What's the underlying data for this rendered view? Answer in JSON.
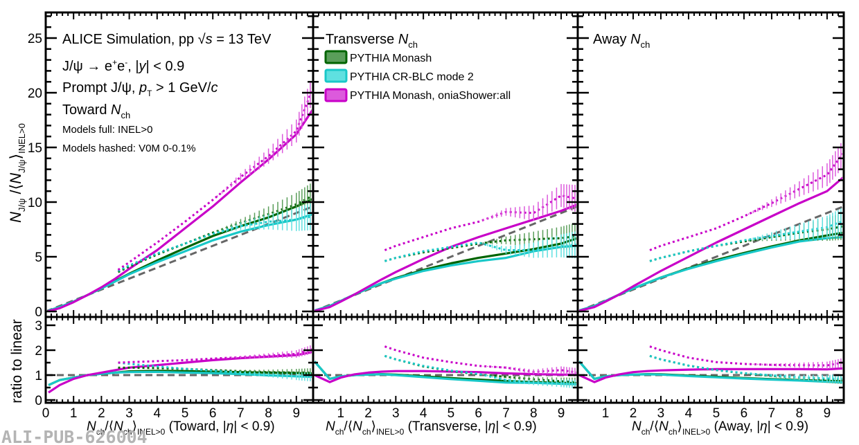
{
  "colors": {
    "monash": "#006400",
    "monash_fill": "#5a9e5a",
    "crblc": "#19c8c8",
    "crblc_fill": "#5fe0e0",
    "onia": "#c800c8",
    "onia_fill": "#dc5adc",
    "linear": "#666666"
  },
  "annotations": {
    "line1_pre": "ALICE Simulation, pp ",
    "line1_sqrt": "√",
    "line1_s": "s",
    "line1_post": " = 13 TeV",
    "line2_a": "J/ψ → e",
    "line2_sup1": "+",
    "line2_b": "e",
    "line2_sup2": "-",
    "line2_c": ", |",
    "line2_y": "y",
    "line2_d": "| < 0.9",
    "line3_a": "Prompt J/ψ, ",
    "line3_p": "p",
    "line3_sub": "T",
    "line3_b": " > 1 GeV/",
    "line3_c": "c",
    "line4_a": "Toward ",
    "line4_N": "N",
    "line4_sub": "ch",
    "line5": "Models full: INEL>0",
    "line6": "Models hashed: V0M 0-0.1%",
    "transverse_a": "Transverse ",
    "transverse_N": "N",
    "transverse_sub": "ch",
    "away_a": "Away ",
    "away_N": "N",
    "away_sub": "ch"
  },
  "watermark": "ALI-PUB-626004",
  "chart_data": [
    {
      "type": "line",
      "title": "Toward Nch",
      "panel": "toward",
      "xlabel": "Nch/⟨Nch⟩INEL>0 (Toward, |η| < 0.9)",
      "ylabel": "NJ/ψ/⟨NJ/ψ⟩INEL>0",
      "ylabel_ratio": "ratio to linear",
      "xlim": [
        0,
        9.6
      ],
      "ylim": [
        0,
        27
      ],
      "ylim_ratio": [
        0,
        3.4
      ],
      "x_ticks": [
        "0",
        "1",
        "2",
        "3",
        "4",
        "5",
        "6",
        "7",
        "8",
        "9"
      ],
      "y_ticks": [
        "0",
        "5",
        "10",
        "15",
        "20",
        "25"
      ],
      "y_ticks_ratio": [
        "0",
        "1",
        "2",
        "3"
      ],
      "legend": [
        "PYTHIA Monash",
        "PYTHIA CR-BLC mode 2",
        "PYTHIA Monash, oniaShower:all"
      ],
      "series": [
        {
          "name": "Linear reference",
          "style": "dashed",
          "color": "linear",
          "x": [
            0,
            9.6
          ],
          "y": [
            0,
            9.6
          ],
          "ratio": [
            1,
            1
          ]
        },
        {
          "name": "PYTHIA Monash (INEL>0)",
          "style": "solid",
          "color": "monash",
          "x": [
            0.1,
            0.5,
            1,
            1.5,
            2,
            2.5,
            3,
            4,
            5,
            6,
            7,
            8,
            9,
            9.6
          ],
          "y": [
            0.07,
            0.4,
            0.9,
            1.5,
            2.1,
            2.8,
            3.45,
            4.65,
            5.8,
            6.9,
            7.8,
            8.6,
            9.6,
            10.3
          ],
          "ratio": [
            0.6,
            0.8,
            0.9,
            1.0,
            1.05,
            1.1,
            1.15,
            1.17,
            1.16,
            1.14,
            1.12,
            1.1,
            1.08,
            1.07
          ]
        },
        {
          "name": "PYTHIA CR-BLC mode 2 (INEL>0)",
          "style": "solid",
          "color": "crblc",
          "x": [
            0.1,
            0.5,
            1,
            1.5,
            2,
            2.5,
            3,
            4,
            5,
            6,
            7,
            8,
            9,
            9.6
          ],
          "y": [
            0.07,
            0.4,
            0.9,
            1.5,
            2.1,
            2.75,
            3.4,
            4.5,
            5.5,
            6.5,
            7.3,
            7.9,
            8.4,
            8.9
          ],
          "ratio": [
            0.6,
            0.8,
            0.9,
            1.0,
            1.05,
            1.1,
            1.12,
            1.13,
            1.1,
            1.08,
            1.04,
            0.99,
            0.95,
            0.93
          ]
        },
        {
          "name": "PYTHIA Monash, oniaShower:all (INEL>0)",
          "style": "solid",
          "color": "onia",
          "x": [
            0.1,
            0.5,
            1,
            1.5,
            2,
            2.5,
            3,
            4,
            5,
            6,
            7,
            8,
            9,
            9.6
          ],
          "y": [
            0.03,
            0.3,
            0.85,
            1.5,
            2.2,
            3.0,
            3.9,
            5.6,
            7.6,
            9.6,
            11.8,
            13.9,
            16.2,
            18.5
          ],
          "ratio": [
            0.3,
            0.6,
            0.85,
            1.0,
            1.1,
            1.2,
            1.3,
            1.4,
            1.5,
            1.6,
            1.68,
            1.74,
            1.8,
            1.93
          ]
        },
        {
          "name": "PYTHIA Monash (V0M 0-0.1%)",
          "style": "hashed",
          "color": "monash",
          "x": [
            2.6,
            3,
            4,
            5,
            6,
            7,
            8,
            9,
            9.6
          ],
          "y": [
            3.6,
            4.1,
            5.2,
            6.2,
            7.2,
            8.1,
            8.9,
            9.8,
            10.6
          ],
          "ratio": [
            1.3,
            1.3,
            1.28,
            1.25,
            1.2,
            1.16,
            1.12,
            1.1,
            1.1
          ]
        },
        {
          "name": "PYTHIA CR-BLC mode 2 (V0M 0-0.1%)",
          "style": "hashed",
          "color": "crblc",
          "x": [
            2.6,
            3,
            4,
            5,
            6,
            7,
            8,
            9,
            9.6
          ],
          "y": [
            3.7,
            4.2,
            5.3,
            6.2,
            7.1,
            7.8,
            8.2,
            8.4,
            8.7
          ],
          "ratio": [
            1.5,
            1.45,
            1.35,
            1.25,
            1.18,
            1.1,
            1.02,
            0.95,
            0.92
          ]
        },
        {
          "name": "PYTHIA Monash, oniaShower:all (V0M 0-0.1%)",
          "style": "hashed",
          "color": "onia",
          "x": [
            2.6,
            3,
            4,
            5,
            6,
            7,
            8,
            9,
            9.6
          ],
          "y": [
            3.8,
            4.5,
            6.3,
            8.2,
            10.2,
            12.3,
            14.2,
            16.5,
            20.5
          ],
          "ratio": [
            1.5,
            1.52,
            1.56,
            1.6,
            1.66,
            1.72,
            1.78,
            1.85,
            2.05
          ]
        }
      ]
    },
    {
      "type": "line",
      "title": "Transverse Nch",
      "panel": "transverse",
      "xlabel": "Nch/⟨Nch⟩INEL>0 (Transverse, |η| < 0.9)",
      "xlim": [
        0,
        9.6
      ],
      "ylim": [
        0,
        27
      ],
      "ylim_ratio": [
        0,
        3.4
      ],
      "x_ticks": [
        "1",
        "2",
        "3",
        "4",
        "5",
        "6",
        "7",
        "8",
        "9"
      ],
      "series": [
        {
          "name": "Linear reference",
          "style": "dashed",
          "color": "linear",
          "x": [
            0,
            9.6
          ],
          "y": [
            0,
            9.6
          ],
          "ratio": [
            1,
            1
          ]
        },
        {
          "name": "PYTHIA Monash (INEL>0)",
          "style": "solid",
          "color": "monash",
          "x": [
            0.05,
            0.6,
            1,
            1.5,
            2,
            2.5,
            3,
            4,
            5,
            6,
            7,
            8,
            9,
            9.6
          ],
          "y": [
            0.08,
            0.5,
            0.95,
            1.55,
            2.1,
            2.6,
            3.05,
            3.8,
            4.4,
            4.9,
            5.3,
            5.7,
            6.2,
            6.7
          ],
          "ratio": [
            1.55,
            0.85,
            0.95,
            1.0,
            1.02,
            1.04,
            1.02,
            0.95,
            0.88,
            0.82,
            0.76,
            0.72,
            0.69,
            0.68
          ]
        },
        {
          "name": "PYTHIA CR-BLC mode 2 (INEL>0)",
          "style": "solid",
          "color": "crblc",
          "x": [
            0.05,
            0.6,
            1,
            1.5,
            2,
            2.5,
            3,
            4,
            5,
            6,
            7,
            8,
            9,
            9.6
          ],
          "y": [
            0.08,
            0.5,
            0.95,
            1.55,
            2.1,
            2.6,
            3.0,
            3.7,
            4.2,
            4.6,
            4.9,
            5.5,
            5.9,
            6.0
          ],
          "ratio": [
            1.55,
            0.85,
            0.95,
            1.0,
            1.02,
            1.03,
            1.0,
            0.92,
            0.84,
            0.77,
            0.7,
            0.69,
            0.65,
            0.63
          ]
        },
        {
          "name": "PYTHIA Monash, oniaShower:all (INEL>0)",
          "style": "solid",
          "color": "onia",
          "x": [
            0.05,
            0.6,
            1,
            1.5,
            2,
            2.5,
            3,
            4,
            5,
            6,
            7,
            8,
            9,
            9.6
          ],
          "y": [
            0.05,
            0.4,
            0.9,
            1.55,
            2.25,
            2.95,
            3.6,
            4.8,
            5.9,
            6.8,
            7.6,
            8.4,
            9.2,
            9.8
          ],
          "ratio": [
            1.0,
            0.72,
            0.9,
            1.03,
            1.1,
            1.14,
            1.16,
            1.16,
            1.14,
            1.12,
            1.07,
            1.04,
            1.02,
            1.02
          ]
        },
        {
          "name": "PYTHIA Monash (V0M 0-0.1%)",
          "style": "hashed",
          "color": "monash",
          "x": [
            2.6,
            3,
            4,
            5,
            6,
            7,
            8,
            9,
            9.6
          ],
          "y": [
            4.6,
            4.9,
            5.4,
            5.8,
            6.2,
            6.5,
            6.6,
            6.7,
            6.9
          ],
          "ratio": [
            1.77,
            1.63,
            1.35,
            1.16,
            1.03,
            0.93,
            0.83,
            0.75,
            0.72
          ]
        },
        {
          "name": "PYTHIA CR-BLC mode 2 (V0M 0-0.1%)",
          "style": "hashed",
          "color": "crblc",
          "x": [
            2.6,
            3,
            4,
            5,
            6,
            7,
            8,
            9,
            9.6
          ],
          "y": [
            4.6,
            4.9,
            5.5,
            5.9,
            6.3,
            5.6,
            5.6,
            6.0,
            6.1
          ],
          "ratio": [
            1.77,
            1.63,
            1.37,
            1.18,
            1.05,
            0.8,
            0.7,
            0.67,
            0.64
          ]
        },
        {
          "name": "PYTHIA Monash, oniaShower:all (V0M 0-0.1%)",
          "style": "hashed",
          "color": "onia",
          "x": [
            2.6,
            3,
            4,
            5,
            6,
            7,
            8,
            9,
            9.6
          ],
          "y": [
            5.6,
            6.0,
            6.8,
            7.6,
            8.2,
            9.1,
            9.0,
            10.6,
            10.3
          ],
          "ratio": [
            2.15,
            2.0,
            1.7,
            1.52,
            1.37,
            1.3,
            1.13,
            1.2,
            1.1
          ]
        }
      ]
    },
    {
      "type": "line",
      "title": "Away Nch",
      "panel": "away",
      "xlabel": "Nch/⟨Nch⟩INEL>0 (Away, |η| < 0.9)",
      "xlim": [
        0,
        9.6
      ],
      "ylim": [
        0,
        27
      ],
      "ylim_ratio": [
        0,
        3.4
      ],
      "x_ticks": [
        "1",
        "2",
        "3",
        "4",
        "5",
        "6",
        "7",
        "8",
        "9"
      ],
      "series": [
        {
          "name": "Linear reference",
          "style": "dashed",
          "color": "linear",
          "x": [
            0,
            9.6
          ],
          "y": [
            0,
            9.6
          ],
          "ratio": [
            1,
            1
          ]
        },
        {
          "name": "PYTHIA Monash (INEL>0)",
          "style": "solid",
          "color": "monash",
          "x": [
            0.05,
            0.6,
            1,
            1.5,
            2,
            2.5,
            3,
            4,
            5,
            6,
            7,
            8,
            9,
            9.6
          ],
          "y": [
            0.08,
            0.5,
            0.95,
            1.55,
            2.1,
            2.6,
            3.1,
            3.95,
            4.7,
            5.35,
            5.95,
            6.5,
            6.95,
            7.2
          ],
          "ratio": [
            1.55,
            0.85,
            0.95,
            1.0,
            1.02,
            1.04,
            1.03,
            0.98,
            0.93,
            0.88,
            0.84,
            0.8,
            0.77,
            0.75
          ]
        },
        {
          "name": "PYTHIA CR-BLC mode 2 (INEL>0)",
          "style": "solid",
          "color": "crblc",
          "x": [
            0.05,
            0.6,
            1,
            1.5,
            2,
            2.5,
            3,
            4,
            5,
            6,
            7,
            8,
            9,
            9.6
          ],
          "y": [
            0.08,
            0.5,
            0.95,
            1.55,
            2.1,
            2.6,
            3.1,
            3.9,
            4.6,
            5.25,
            5.85,
            6.4,
            6.7,
            6.8
          ],
          "ratio": [
            1.55,
            0.85,
            0.95,
            1.0,
            1.02,
            1.03,
            1.02,
            0.96,
            0.91,
            0.86,
            0.82,
            0.78,
            0.73,
            0.7
          ]
        },
        {
          "name": "PYTHIA Monash, oniaShower:all (INEL>0)",
          "style": "solid",
          "color": "onia",
          "x": [
            0.05,
            0.6,
            1,
            1.5,
            2,
            2.5,
            3,
            4,
            5,
            6,
            7,
            8,
            9,
            9.6
          ],
          "y": [
            0.05,
            0.4,
            0.9,
            1.55,
            2.3,
            3.0,
            3.7,
            5.0,
            6.3,
            7.5,
            8.7,
            9.9,
            11.0,
            12.3
          ],
          "ratio": [
            1.0,
            0.72,
            0.9,
            1.03,
            1.12,
            1.16,
            1.19,
            1.22,
            1.24,
            1.24,
            1.24,
            1.24,
            1.23,
            1.27
          ]
        },
        {
          "name": "PYTHIA Monash (V0M 0-0.1%)",
          "style": "hashed",
          "color": "monash",
          "x": [
            2.6,
            3,
            4,
            5,
            6,
            7,
            8,
            9,
            9.6
          ],
          "y": [
            4.6,
            4.9,
            5.5,
            6.0,
            6.4,
            6.8,
            7.2,
            7.5,
            7.8
          ],
          "ratio": [
            1.77,
            1.63,
            1.38,
            1.2,
            1.07,
            0.97,
            0.9,
            0.84,
            0.82
          ]
        },
        {
          "name": "PYTHIA CR-BLC mode 2 (V0M 0-0.1%)",
          "style": "hashed",
          "color": "crblc",
          "x": [
            2.6,
            3,
            4,
            5,
            6,
            7,
            8,
            9,
            9.6
          ],
          "y": [
            4.6,
            4.9,
            5.5,
            6.0,
            6.5,
            6.9,
            7.3,
            7.7,
            8.3
          ],
          "ratio": [
            1.77,
            1.63,
            1.38,
            1.2,
            1.08,
            0.99,
            0.91,
            0.86,
            0.86
          ]
        },
        {
          "name": "PYTHIA Monash, oniaShower:all (V0M 0-0.1%)",
          "style": "hashed",
          "color": "onia",
          "x": [
            2.6,
            3,
            4,
            5,
            6,
            7,
            8,
            9,
            9.6
          ],
          "y": [
            5.6,
            6.0,
            6.8,
            7.6,
            8.7,
            9.9,
            11.2,
            12.5,
            14.5
          ],
          "ratio": [
            2.15,
            2.0,
            1.7,
            1.52,
            1.45,
            1.41,
            1.4,
            1.39,
            1.51
          ]
        }
      ]
    }
  ]
}
